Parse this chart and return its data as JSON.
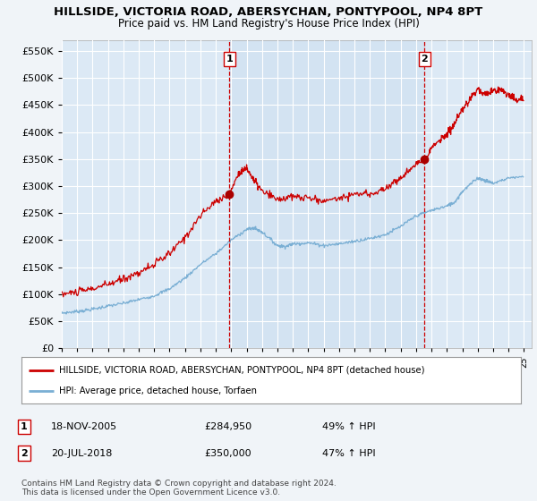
{
  "title": "HILLSIDE, VICTORIA ROAD, ABERSYCHAN, PONTYPOOL, NP4 8PT",
  "subtitle": "Price paid vs. HM Land Registry's House Price Index (HPI)",
  "bg_color": "#dce9f5",
  "grid_color": "#ffffff",
  "red_line_color": "#cc0000",
  "blue_line_color": "#7aafd4",
  "sale1_date": "18-NOV-2005",
  "sale1_price": 284950,
  "sale1_hpi": "49% ↑ HPI",
  "sale2_date": "20-JUL-2018",
  "sale2_price": 350000,
  "sale2_hpi": "47% ↑ HPI",
  "legend_label1": "HILLSIDE, VICTORIA ROAD, ABERSYCHAN, PONTYPOOL, NP4 8PT (detached house)",
  "legend_label2": "HPI: Average price, detached house, Torfaen",
  "footer": "Contains HM Land Registry data © Crown copyright and database right 2024.\nThis data is licensed under the Open Government Licence v3.0.",
  "ylim": [
    0,
    570000
  ],
  "yticks": [
    0,
    50000,
    100000,
    150000,
    200000,
    250000,
    300000,
    350000,
    400000,
    450000,
    500000,
    550000
  ],
  "fig_bg": "#f0f4f8",
  "sale1_x": 2005.875,
  "sale2_x": 2018.542
}
